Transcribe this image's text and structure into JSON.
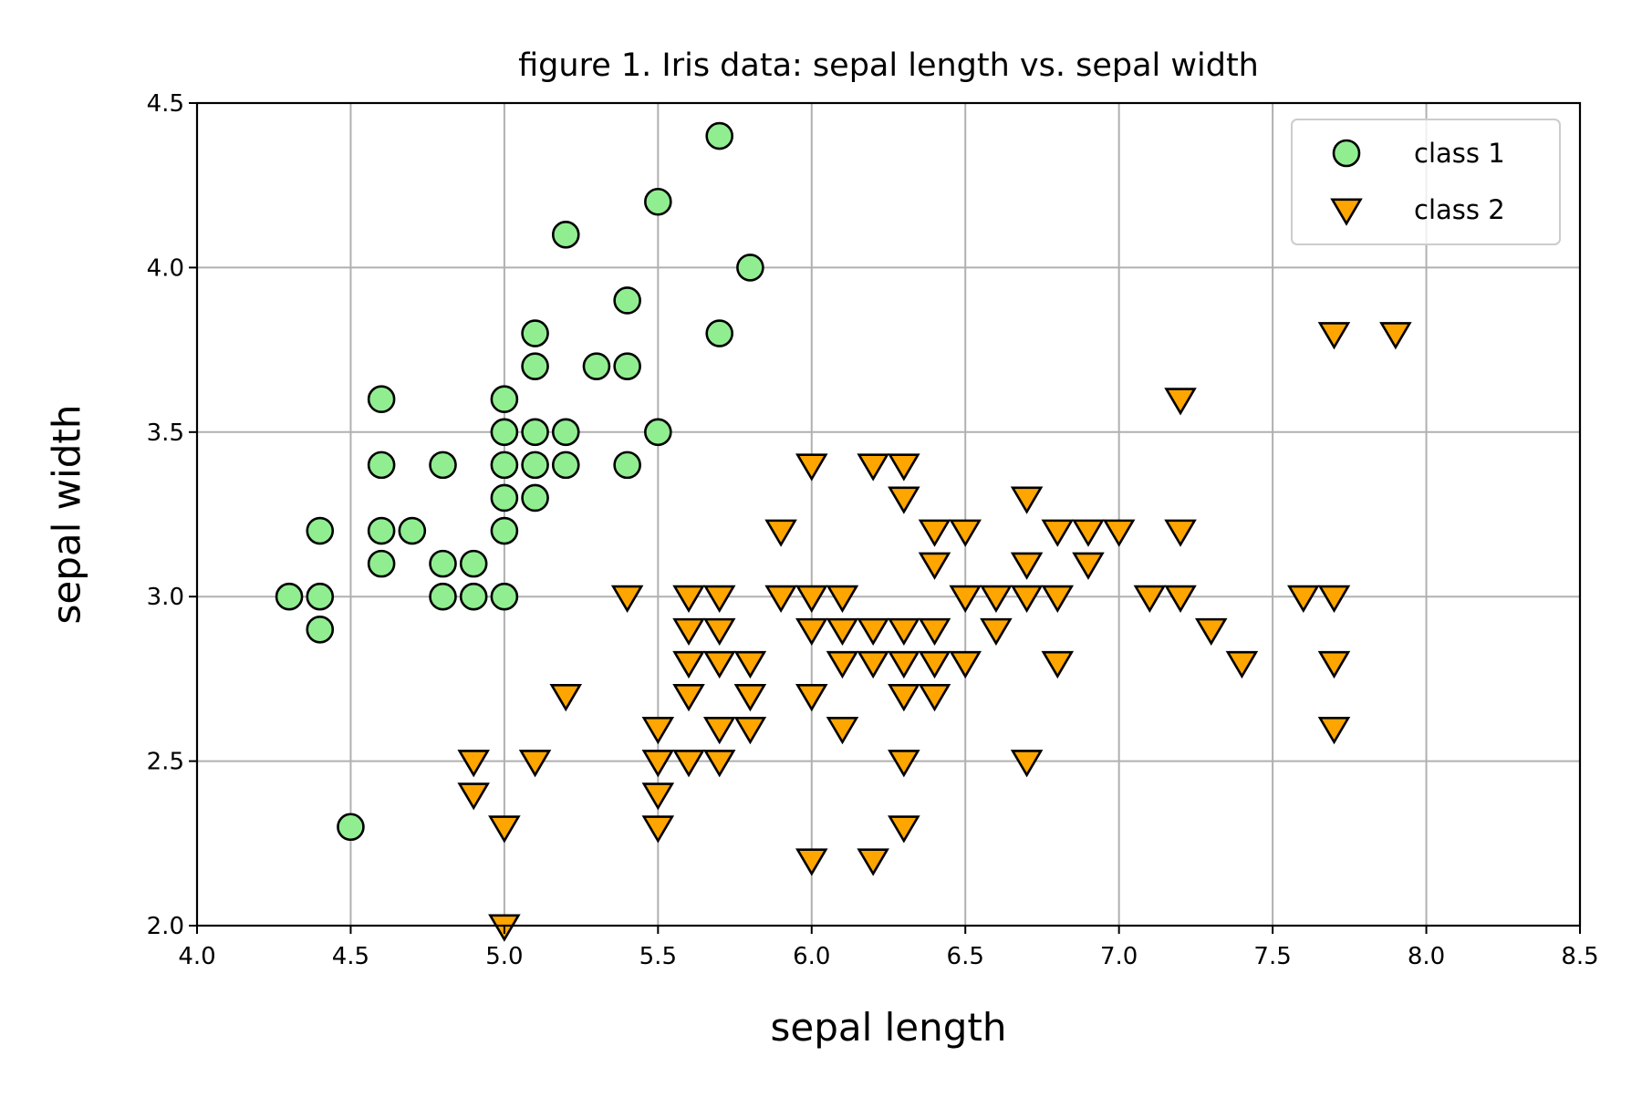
{
  "chart_data": {
    "type": "scatter",
    "title": "figure 1. Iris data: sepal length vs. sepal width",
    "xlabel": "sepal length",
    "ylabel": "sepal width",
    "xlim": [
      4.0,
      8.5
    ],
    "ylim": [
      2.0,
      4.5
    ],
    "grid": true,
    "legend_position": "top-right",
    "x_ticks": [
      "4.0",
      "4.5",
      "5.0",
      "5.5",
      "6.0",
      "6.5",
      "7.0",
      "7.5",
      "8.0",
      "8.5"
    ],
    "y_ticks": [
      "2.0",
      "2.5",
      "3.0",
      "3.5",
      "4.0",
      "4.5"
    ],
    "series": [
      {
        "name": "class 1",
        "marker": "circle",
        "color": "#90ee90",
        "edge_color": "#000000",
        "points": [
          [
            4.3,
            3.0
          ],
          [
            4.4,
            3.2
          ],
          [
            4.4,
            3.0
          ],
          [
            4.4,
            2.9
          ],
          [
            4.5,
            2.3
          ],
          [
            4.6,
            3.6
          ],
          [
            4.6,
            3.4
          ],
          [
            4.6,
            3.2
          ],
          [
            4.6,
            3.1
          ],
          [
            4.7,
            3.2
          ],
          [
            4.8,
            3.4
          ],
          [
            4.8,
            3.1
          ],
          [
            4.8,
            3.0
          ],
          [
            4.9,
            3.1
          ],
          [
            4.9,
            3.0
          ],
          [
            5.0,
            3.6
          ],
          [
            5.0,
            3.5
          ],
          [
            5.0,
            3.4
          ],
          [
            5.0,
            3.3
          ],
          [
            5.0,
            3.2
          ],
          [
            5.0,
            3.0
          ],
          [
            5.1,
            3.8
          ],
          [
            5.1,
            3.7
          ],
          [
            5.1,
            3.5
          ],
          [
            5.1,
            3.4
          ],
          [
            5.1,
            3.3
          ],
          [
            5.2,
            4.1
          ],
          [
            5.2,
            3.5
          ],
          [
            5.2,
            3.4
          ],
          [
            5.3,
            3.7
          ],
          [
            5.4,
            3.9
          ],
          [
            5.4,
            3.7
          ],
          [
            5.4,
            3.4
          ],
          [
            5.5,
            4.2
          ],
          [
            5.5,
            3.5
          ],
          [
            5.7,
            4.4
          ],
          [
            5.7,
            3.8
          ],
          [
            5.8,
            4.0
          ]
        ]
      },
      {
        "name": "class 2",
        "marker": "triangle-down",
        "color": "#ffa500",
        "edge_color": "#000000",
        "points": [
          [
            4.9,
            2.5
          ],
          [
            4.9,
            2.4
          ],
          [
            5.0,
            2.3
          ],
          [
            5.0,
            2.0
          ],
          [
            5.1,
            2.5
          ],
          [
            5.2,
            2.7
          ],
          [
            5.4,
            3.0
          ],
          [
            5.5,
            2.6
          ],
          [
            5.5,
            2.5
          ],
          [
            5.5,
            2.4
          ],
          [
            5.5,
            2.3
          ],
          [
            5.6,
            3.0
          ],
          [
            5.6,
            2.9
          ],
          [
            5.6,
            2.8
          ],
          [
            5.6,
            2.7
          ],
          [
            5.6,
            2.5
          ],
          [
            5.7,
            3.0
          ],
          [
            5.7,
            2.9
          ],
          [
            5.7,
            2.8
          ],
          [
            5.7,
            2.6
          ],
          [
            5.7,
            2.5
          ],
          [
            5.8,
            2.8
          ],
          [
            5.8,
            2.7
          ],
          [
            5.8,
            2.6
          ],
          [
            5.9,
            3.2
          ],
          [
            5.9,
            3.0
          ],
          [
            6.0,
            3.4
          ],
          [
            6.0,
            3.0
          ],
          [
            6.0,
            2.9
          ],
          [
            6.0,
            2.7
          ],
          [
            6.0,
            2.2
          ],
          [
            6.1,
            3.0
          ],
          [
            6.1,
            2.9
          ],
          [
            6.1,
            2.8
          ],
          [
            6.1,
            2.6
          ],
          [
            6.2,
            3.4
          ],
          [
            6.2,
            2.9
          ],
          [
            6.2,
            2.8
          ],
          [
            6.2,
            2.2
          ],
          [
            6.3,
            3.4
          ],
          [
            6.3,
            3.3
          ],
          [
            6.3,
            2.9
          ],
          [
            6.3,
            2.8
          ],
          [
            6.3,
            2.7
          ],
          [
            6.3,
            2.5
          ],
          [
            6.3,
            2.3
          ],
          [
            6.4,
            3.2
          ],
          [
            6.4,
            3.1
          ],
          [
            6.4,
            2.9
          ],
          [
            6.4,
            2.8
          ],
          [
            6.4,
            2.7
          ],
          [
            6.5,
            3.2
          ],
          [
            6.5,
            3.0
          ],
          [
            6.5,
            2.8
          ],
          [
            6.6,
            3.0
          ],
          [
            6.6,
            2.9
          ],
          [
            6.7,
            3.3
          ],
          [
            6.7,
            3.1
          ],
          [
            6.7,
            3.0
          ],
          [
            6.7,
            2.5
          ],
          [
            6.8,
            3.2
          ],
          [
            6.8,
            3.0
          ],
          [
            6.8,
            2.8
          ],
          [
            6.9,
            3.2
          ],
          [
            6.9,
            3.1
          ],
          [
            7.0,
            3.2
          ],
          [
            7.1,
            3.0
          ],
          [
            7.2,
            3.6
          ],
          [
            7.2,
            3.2
          ],
          [
            7.2,
            3.0
          ],
          [
            7.3,
            2.9
          ],
          [
            7.4,
            2.8
          ],
          [
            7.6,
            3.0
          ],
          [
            7.7,
            3.8
          ],
          [
            7.7,
            3.0
          ],
          [
            7.7,
            2.8
          ],
          [
            7.7,
            2.6
          ],
          [
            7.9,
            3.8
          ]
        ]
      }
    ]
  }
}
